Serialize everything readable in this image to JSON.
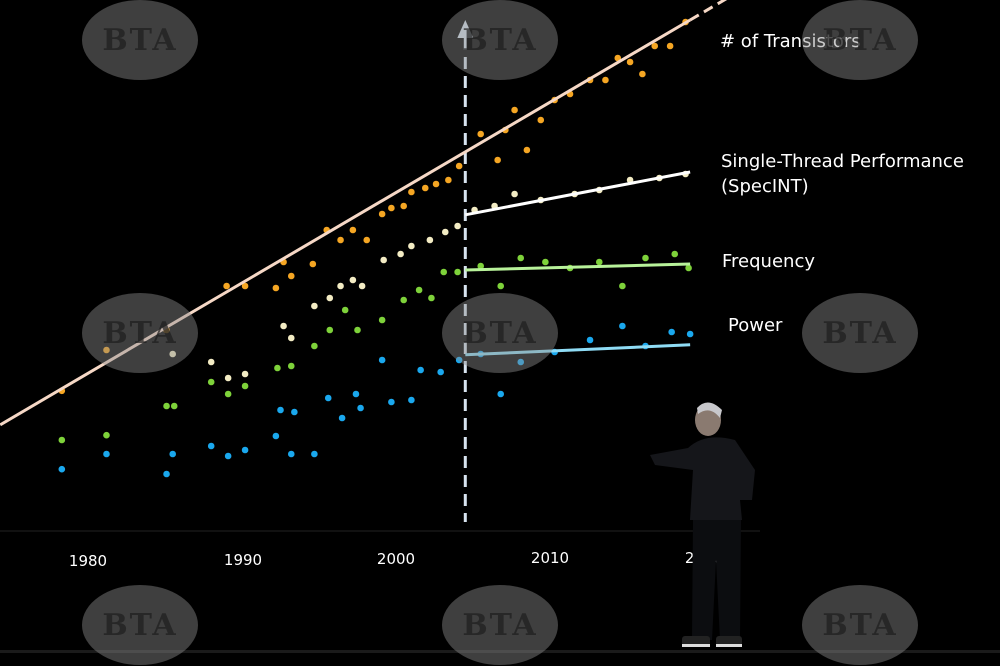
{
  "chart_data": {
    "type": "scatter",
    "x_scale": "linear",
    "y_scale": "log (unlabeled, relative magnitude)",
    "xlim": [
      1974,
      2021
    ],
    "ylim": [
      -1.5,
      10.75
    ],
    "grid": false,
    "x_ticks": [
      "1980",
      "1990",
      "2000",
      "2010",
      "2020"
    ],
    "marker_year": 2004.5,
    "series": [
      {
        "name": "# of Transistors",
        "color": "#f5a623",
        "trend_color": "#f6d8c6",
        "trend": [
          [
            1974.3,
            0.13
          ],
          [
            2019.1,
            10.25
          ]
        ],
        "trend_extends_dashed": true,
        "points": [
          [
            1978.3,
            0.98
          ],
          [
            1981.2,
            2.0
          ],
          [
            1985.1,
            2.5
          ],
          [
            1989,
            3.6
          ],
          [
            1990.2,
            3.6
          ],
          [
            1992.2,
            3.55
          ],
          [
            1992.7,
            4.2
          ],
          [
            1993.2,
            3.85
          ],
          [
            1994.6,
            4.15
          ],
          [
            1995.5,
            5.0
          ],
          [
            1996.4,
            4.75
          ],
          [
            1997.2,
            5.0
          ],
          [
            1998.1,
            4.75
          ],
          [
            1999.1,
            5.4
          ],
          [
            1999.7,
            5.55
          ],
          [
            2000.5,
            5.6
          ],
          [
            2001,
            5.95
          ],
          [
            2001.9,
            6.05
          ],
          [
            2002.6,
            6.15
          ],
          [
            2003.4,
            6.25
          ],
          [
            2004.1,
            6.6
          ],
          [
            2005.5,
            7.4
          ],
          [
            2006.6,
            6.75
          ],
          [
            2007.1,
            7.5
          ],
          [
            2007.7,
            8.0
          ],
          [
            2008.5,
            7.0
          ],
          [
            2009.4,
            7.75
          ],
          [
            2010.3,
            8.25
          ],
          [
            2011.3,
            8.4
          ],
          [
            2012.6,
            8.75
          ],
          [
            2013.6,
            8.75
          ],
          [
            2014.4,
            9.3
          ],
          [
            2015.2,
            9.2
          ],
          [
            2016,
            8.9
          ],
          [
            2016.8,
            9.6
          ],
          [
            2017.8,
            9.6
          ],
          [
            2018.8,
            10.2
          ]
        ]
      },
      {
        "name": "Single-Thread Performance",
        "name_line2": "(SpecINT)",
        "color": "#f3ecc4",
        "trend_color": "#ffffff",
        "trend": [
          [
            2004.5,
            5.38
          ],
          [
            2019.1,
            6.45
          ]
        ],
        "points": [
          [
            1985.5,
            1.9
          ],
          [
            1988,
            1.7
          ],
          [
            1989.1,
            1.3
          ],
          [
            1990.2,
            1.4
          ],
          [
            1992.7,
            2.6
          ],
          [
            1993.2,
            2.3
          ],
          [
            1994.7,
            3.1
          ],
          [
            1995.7,
            3.3
          ],
          [
            1996.4,
            3.6
          ],
          [
            1997.2,
            3.75
          ],
          [
            1997.8,
            3.6
          ],
          [
            1999.2,
            4.25
          ],
          [
            2000.3,
            4.4
          ],
          [
            2001,
            4.6
          ],
          [
            2002.2,
            4.75
          ],
          [
            2003.2,
            4.95
          ],
          [
            2004,
            5.1
          ],
          [
            2005.1,
            5.5
          ],
          [
            2006.4,
            5.6
          ],
          [
            2007.7,
            5.9
          ],
          [
            2009.4,
            5.75
          ],
          [
            2011.6,
            5.9
          ],
          [
            2013.2,
            6.0
          ],
          [
            2015.2,
            6.25
          ],
          [
            2017.1,
            6.3
          ],
          [
            2018.8,
            6.4
          ]
        ]
      },
      {
        "name": "Frequency",
        "color": "#7ed23a",
        "trend_color": "#b8f29a",
        "trend": [
          [
            2004.5,
            4.0
          ],
          [
            2019.1,
            4.15
          ]
        ],
        "points": [
          [
            1978.3,
            -0.25
          ],
          [
            1981.2,
            -0.13
          ],
          [
            1985.1,
            0.6
          ],
          [
            1985.6,
            0.6
          ],
          [
            1988,
            1.2
          ],
          [
            1989.1,
            0.9
          ],
          [
            1990.2,
            1.1
          ],
          [
            1992.3,
            1.55
          ],
          [
            1993.2,
            1.6
          ],
          [
            1994.7,
            2.1
          ],
          [
            1995.7,
            2.5
          ],
          [
            1996.7,
            3.0
          ],
          [
            1997.5,
            2.5
          ],
          [
            1999.1,
            2.75
          ],
          [
            2000.5,
            3.25
          ],
          [
            2001.5,
            3.5
          ],
          [
            2002.3,
            3.3
          ],
          [
            2003.1,
            3.95
          ],
          [
            2004,
            3.95
          ],
          [
            2005.5,
            4.1
          ],
          [
            2006.8,
            3.6
          ],
          [
            2008.1,
            4.3
          ],
          [
            2009.7,
            4.2
          ],
          [
            2011.3,
            4.05
          ],
          [
            2013.2,
            4.2
          ],
          [
            2014.7,
            3.6
          ],
          [
            2016.2,
            4.3
          ],
          [
            2018.1,
            4.4
          ],
          [
            2019,
            4.05
          ]
        ]
      },
      {
        "name": "Power",
        "color": "#1aa8ee",
        "trend_color": "#8fdcf5",
        "trend": [
          [
            2004.5,
            1.88
          ],
          [
            2019.1,
            2.13
          ]
        ],
        "points": [
          [
            1978.3,
            -0.98
          ],
          [
            1981.2,
            -0.6
          ],
          [
            1985.1,
            -1.1
          ],
          [
            1985.5,
            -0.6
          ],
          [
            1988,
            -0.4
          ],
          [
            1989.1,
            -0.65
          ],
          [
            1990.2,
            -0.5
          ],
          [
            1992.2,
            -0.15
          ],
          [
            1993.2,
            -0.6
          ],
          [
            1994.7,
            -0.6
          ],
          [
            1992.5,
            0.5
          ],
          [
            1993.4,
            0.45
          ],
          [
            1995.6,
            0.8
          ],
          [
            1996.5,
            0.3
          ],
          [
            1997.4,
            0.9
          ],
          [
            1997.7,
            0.55
          ],
          [
            1999.1,
            1.75
          ],
          [
            1999.7,
            0.7
          ],
          [
            2001,
            0.75
          ],
          [
            2001.6,
            1.5
          ],
          [
            2002.9,
            1.45
          ],
          [
            2004.1,
            1.75
          ],
          [
            2005.5,
            1.9
          ],
          [
            2006.8,
            0.9
          ],
          [
            2008.1,
            1.7
          ],
          [
            2010.3,
            1.95
          ],
          [
            2012.6,
            2.25
          ],
          [
            2014.7,
            2.6
          ],
          [
            2016.2,
            2.1
          ],
          [
            2017.9,
            2.45
          ],
          [
            2019.1,
            2.4
          ]
        ]
      }
    ]
  },
  "watermark": "BTA"
}
